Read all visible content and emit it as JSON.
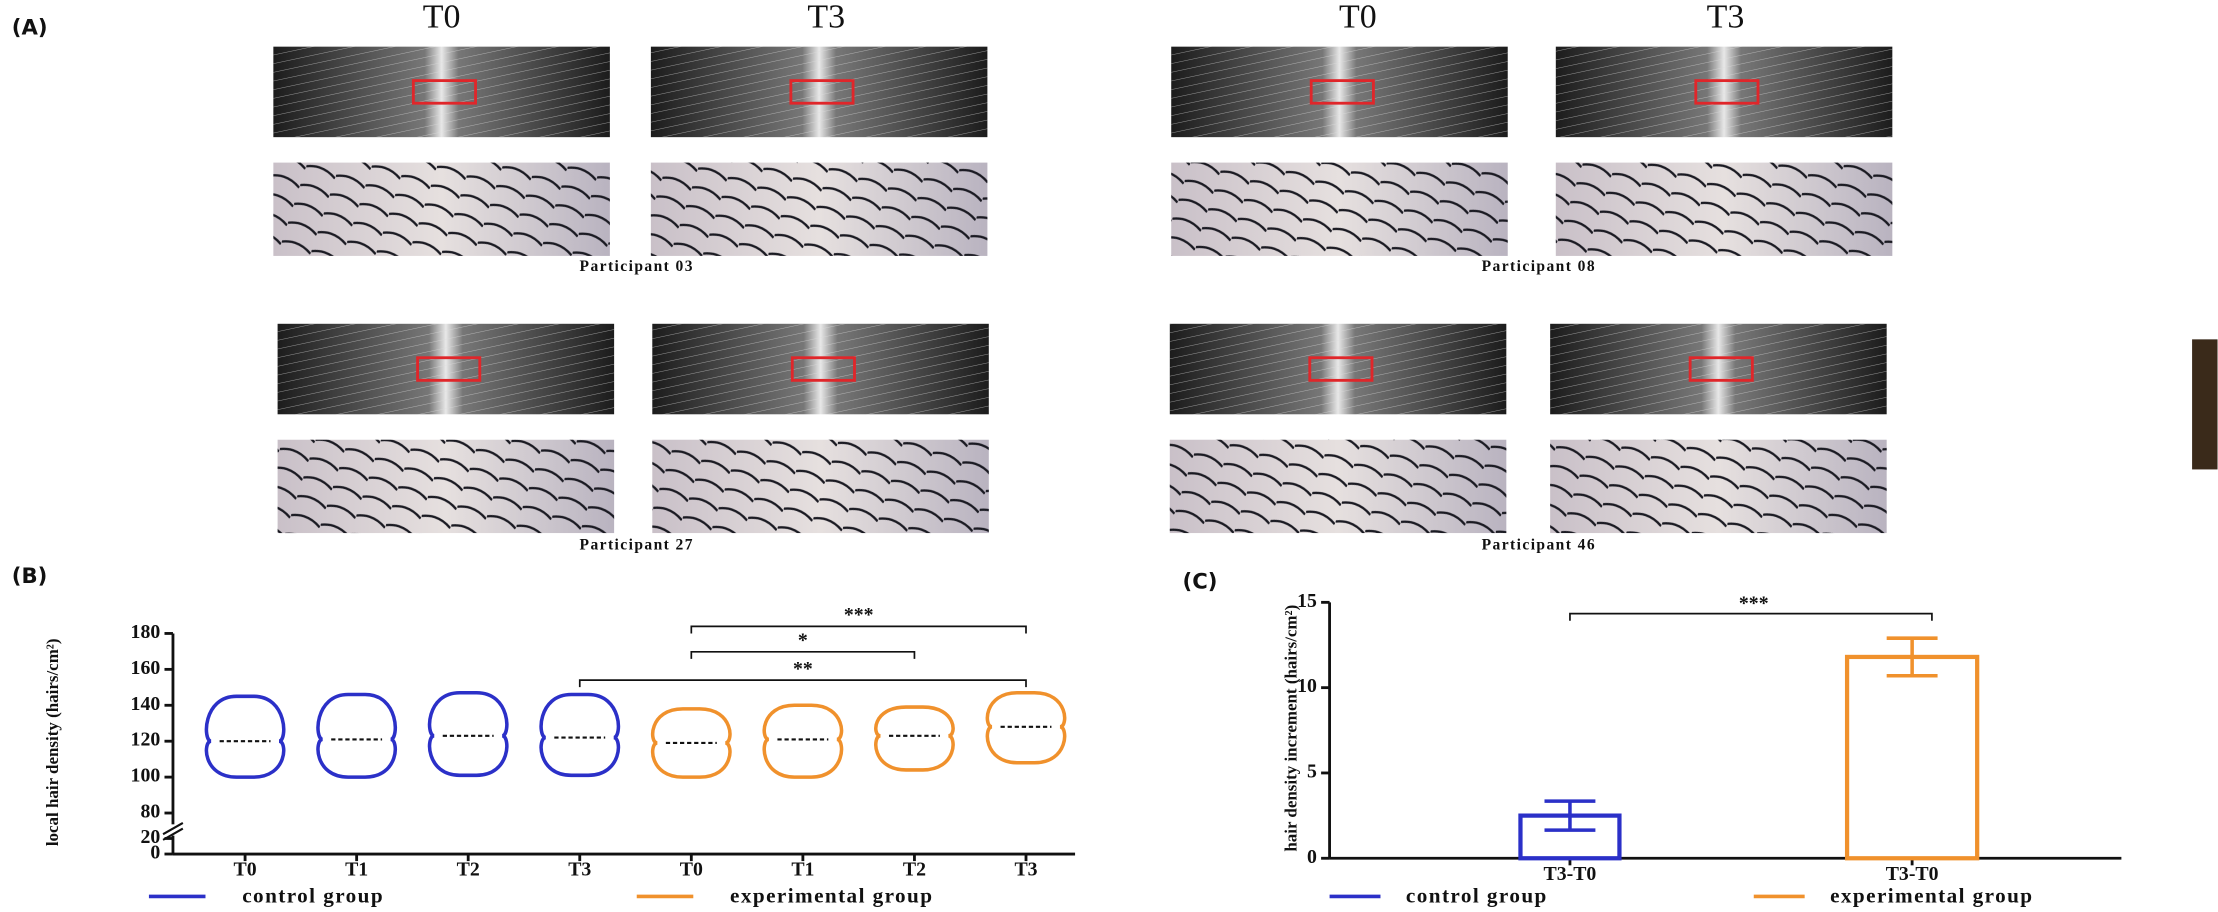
{
  "panel_labels": [
    "(A)",
    "(B)",
    "(C)"
  ],
  "photo_headers": [
    "T0",
    "T3",
    "T0",
    "T3"
  ],
  "participants": [
    "Participant 03",
    "Participant 08",
    "Participant 27",
    "Participant 46"
  ],
  "chart_data": [
    {
      "type": "violin",
      "y_label": "local hair density (hairs/cm²)",
      "categories": [
        "T0",
        "T1",
        "T2",
        "T3",
        "T0",
        "T1",
        "T2",
        "T3"
      ],
      "ylim": [
        0,
        180
      ],
      "yticks": [
        0,
        20,
        80,
        100,
        120,
        140,
        160,
        180
      ],
      "axis_break": [
        20,
        80
      ],
      "series": [
        {
          "name": "control group",
          "color": "#2b30c8",
          "min": [
            100,
            100,
            101,
            101,
            null,
            null,
            null,
            null
          ],
          "median": [
            120,
            121,
            123,
            122,
            null,
            null,
            null,
            null
          ],
          "max": [
            145,
            146,
            147,
            146,
            null,
            null,
            null,
            null
          ]
        },
        {
          "name": "experimental group",
          "color": "#f0912c",
          "min": [
            null,
            null,
            null,
            null,
            100,
            100,
            104,
            108
          ],
          "median": [
            null,
            null,
            null,
            null,
            119,
            121,
            123,
            128
          ],
          "max": [
            null,
            null,
            null,
            null,
            138,
            140,
            139,
            147
          ]
        }
      ],
      "annotations": [
        "***",
        "*",
        "**"
      ]
    },
    {
      "type": "bar",
      "y_label": "hair density increment (hairs/cm²)",
      "categories": [
        "T3-T0",
        "T3-T0"
      ],
      "ylim": [
        0,
        15
      ],
      "yticks": [
        0,
        5,
        10,
        15
      ],
      "series": [
        {
          "name": "control group",
          "color": "#2b30c8",
          "values": [
            2.5,
            null
          ],
          "errors": [
            0.85,
            null
          ]
        },
        {
          "name": "experimental group",
          "color": "#f0912c",
          "values": [
            null,
            11.8
          ],
          "errors": [
            null,
            1.1
          ]
        }
      ],
      "annotations": [
        "***"
      ]
    }
  ]
}
